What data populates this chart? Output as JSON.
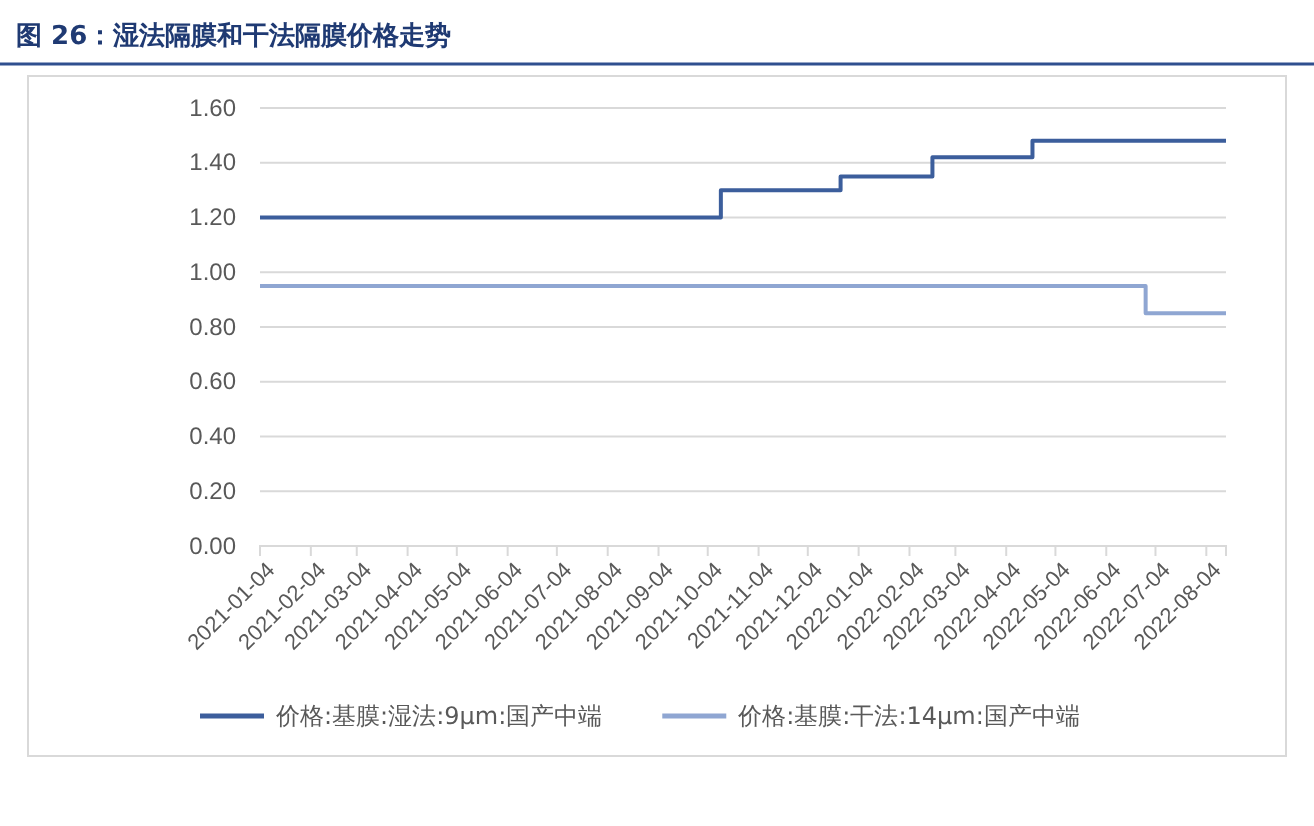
{
  "chart_data": {
    "type": "step",
    "title": "图 26：湿法隔膜和干法隔膜价格走势",
    "series": [
      {
        "name": "价格:基膜:湿法:9μm:国产中端",
        "color": "#3c5e9c",
        "x": [
          "2021-01-04",
          "2021-10-12",
          "2021-12-24",
          "2022-02-18",
          "2022-04-20",
          "2022-08-16"
        ],
        "values": [
          1.2,
          1.3,
          1.35,
          1.42,
          1.48,
          1.48
        ]
      },
      {
        "name": "价格:基膜:干法:14μm:国产中端",
        "color": "#8fa6d2",
        "x": [
          "2021-01-04",
          "2022-06-28",
          "2022-08-16"
        ],
        "values": [
          0.95,
          0.85,
          0.85
        ]
      }
    ],
    "xlim": [
      "2021-01-04",
      "2022-08-16"
    ],
    "xticks": [
      "2021-01-04",
      "2021-02-04",
      "2021-03-04",
      "2021-04-04",
      "2021-05-04",
      "2021-06-04",
      "2021-07-04",
      "2021-08-04",
      "2021-09-04",
      "2021-10-04",
      "2021-11-04",
      "2021-12-04",
      "2022-01-04",
      "2022-02-04",
      "2022-03-04",
      "2022-04-04",
      "2022-05-04",
      "2022-06-04",
      "2022-07-04",
      "2022-08-04"
    ],
    "ylim": [
      0,
      1.6
    ],
    "yticks": [
      {
        "value": 0,
        "label": "0.00"
      },
      {
        "value": 0.2,
        "label": "0.20"
      },
      {
        "value": 0.4,
        "label": "0.40"
      },
      {
        "value": 0.6,
        "label": "0.60"
      },
      {
        "value": 0.8,
        "label": "0.80"
      },
      {
        "value": 1,
        "label": "1.00"
      },
      {
        "value": 1.2,
        "label": "1.20"
      },
      {
        "value": 1.4,
        "label": "1.40"
      },
      {
        "value": 1.6,
        "label": "1.60"
      }
    ],
    "grid": "y",
    "legend": "bottom",
    "line_style": "solid",
    "marker": "none"
  }
}
